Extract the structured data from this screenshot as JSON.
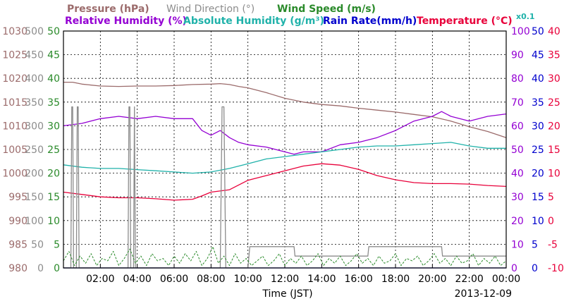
{
  "chart_data": {
    "type": "line",
    "legend": {
      "row1": [
        {
          "key": "pressure",
          "text": "Pressure (hPa)",
          "color": "#9b6b6b"
        },
        {
          "key": "wind_direction",
          "text": "Wind Direction (°)",
          "color": "#8c8c8c"
        },
        {
          "key": "wind_speed",
          "text": "Wind Speed (m/s)",
          "color": "#2a8a2a"
        }
      ],
      "row2": [
        {
          "key": "relative_humidity",
          "text": "Relative Humidity (%)",
          "color": "#9400d3"
        },
        {
          "key": "absolute_humidity",
          "text": "Absolute Humidity (g/m³)",
          "color": "#20b2aa"
        },
        {
          "key": "rain_rate",
          "text": "Rain Rate(mm/h)",
          "color": "#0000cd"
        },
        {
          "key": "temperature",
          "text": "Temperature (°C)",
          "color": "#e8003a"
        }
      ],
      "rain_multiplier": "x0.1"
    },
    "xlabel": "Time (JST)",
    "date": "2013-12-09",
    "x_ticks": [
      "02:00",
      "04:00",
      "06:00",
      "08:00",
      "10:00",
      "12:00",
      "14:00",
      "16:00",
      "18:00",
      "20:00",
      "22:00",
      "00:00"
    ],
    "xlim": [
      0,
      24
    ],
    "axes": {
      "pressure": {
        "ticks": [
          "980",
          "985",
          "990",
          "995",
          "1000",
          "1005",
          "1010",
          "1015",
          "1020",
          "1025",
          "1030"
        ],
        "ylim": [
          980,
          1030
        ],
        "color": "#9b6b6b"
      },
      "wind_direction": {
        "ticks": [
          "0",
          "50",
          "100",
          "150",
          "200",
          "250",
          "300",
          "350",
          "400",
          "450",
          "500"
        ],
        "ylim": [
          0,
          500
        ],
        "color": "#8c8c8c"
      },
      "wind_speed": {
        "ticks": [
          "0",
          "5",
          "10",
          "15",
          "20",
          "25",
          "30",
          "35",
          "40",
          "45",
          "50"
        ],
        "ylim": [
          0,
          50
        ],
        "color": "#2a8a2a"
      },
      "relative_humidity": {
        "ticks": [
          "0",
          "10",
          "20",
          "30",
          "40",
          "50",
          "60",
          "70",
          "80",
          "90",
          "100"
        ],
        "ylim": [
          0,
          100
        ],
        "color": "#9400d3"
      },
      "rain_rate": {
        "ticks": [
          "0",
          "5",
          "10",
          "15",
          "20",
          "25",
          "30",
          "35",
          "40",
          "45",
          "50"
        ],
        "ylim": [
          0,
          50
        ],
        "color": "#0000cd"
      },
      "temperature": {
        "ticks": [
          "-10",
          "-5",
          "0",
          "5",
          "10",
          "15",
          "20",
          "25",
          "30",
          "35",
          "40"
        ],
        "ylim": [
          -10,
          40
        ],
        "color": "#e8003a"
      }
    },
    "grid": true,
    "series": [
      {
        "name": "Pressure (hPa)",
        "color": "#9b6b6b",
        "axis": "pressure",
        "x": [
          0,
          0.5,
          1,
          2,
          3,
          4,
          5,
          6,
          7,
          8,
          8.5,
          9,
          9.5,
          10,
          11,
          12,
          13,
          14,
          15,
          16,
          17,
          18,
          19,
          20,
          21,
          22,
          23,
          24
        ],
        "y": [
          1019.2,
          1019.2,
          1018.8,
          1018.4,
          1018.3,
          1018.4,
          1018.4,
          1018.5,
          1018.7,
          1018.8,
          1018.9,
          1018.7,
          1018.3,
          1018.0,
          1017.0,
          1015.8,
          1015.0,
          1014.5,
          1014.2,
          1013.7,
          1013.3,
          1012.9,
          1012.4,
          1011.9,
          1011.0,
          1009.8,
          1008.8,
          1007.5
        ]
      },
      {
        "name": "Relative Humidity (%)",
        "color": "#9400d3",
        "axis": "relative_humidity",
        "x": [
          0,
          1,
          2,
          3,
          4,
          5,
          6,
          7,
          7.5,
          8,
          8.5,
          9,
          9.5,
          10,
          11,
          12,
          12.5,
          13,
          14,
          15,
          16,
          17,
          18,
          19,
          20,
          20.5,
          21,
          22,
          23,
          24
        ],
        "y": [
          60,
          61,
          63,
          64,
          63,
          64,
          63,
          63,
          58,
          56,
          58,
          55,
          53,
          52,
          51,
          49,
          48,
          49,
          49,
          52,
          53,
          55,
          58,
          62,
          64,
          66,
          64,
          62,
          64,
          65
        ]
      },
      {
        "name": "Absolute Humidity (g/m³)",
        "color": "#20b2aa",
        "axis": "relative_humidity",
        "x": [
          0,
          1,
          2,
          3,
          4,
          5,
          6,
          7,
          8,
          9,
          10,
          11,
          12,
          13,
          14,
          15,
          16,
          17,
          18,
          19,
          20,
          21,
          22,
          23,
          24
        ],
        "y": [
          43.5,
          42.5,
          42,
          42,
          41.5,
          41,
          40.5,
          40,
          40.5,
          42,
          44,
          46,
          47,
          48,
          49,
          50,
          51,
          51.5,
          51.5,
          52,
          52.5,
          53,
          51.5,
          50.5,
          50.5
        ]
      },
      {
        "name": "Rain Rate(mm/h)",
        "color": "#0000cd",
        "axis": "rain_rate",
        "x": [
          0,
          24
        ],
        "y": [
          0,
          0
        ]
      },
      {
        "name": "Temperature (°C)",
        "color": "#e8003a",
        "axis": "temperature",
        "x": [
          0,
          1,
          2,
          3,
          4,
          5,
          6,
          7,
          7.5,
          8,
          9,
          10,
          11,
          12,
          13,
          14,
          15,
          16,
          17,
          18,
          19,
          20,
          21,
          22,
          23,
          24
        ],
        "y": [
          6,
          5.5,
          5,
          4.8,
          4.8,
          4.6,
          4.3,
          4.5,
          5.2,
          6,
          6.5,
          8.5,
          9.5,
          10.5,
          11.5,
          12,
          11.7,
          10.8,
          9.5,
          8.6,
          8,
          7.8,
          7.8,
          7.7,
          7.4,
          7.2
        ]
      },
      {
        "name": "Wind Direction (°)",
        "color": "#8c8c8c",
        "axis": "wind_direction",
        "x": [
          0,
          0.4,
          0.45,
          0.5,
          0.55,
          0.7,
          0.75,
          0.8,
          0.85,
          1.0,
          3.5,
          3.55,
          3.6,
          3.65,
          3.8,
          3.85,
          3.9,
          4.0,
          8.5,
          8.6,
          8.7,
          8.8,
          9.0,
          10.0,
          10.1,
          12.5,
          12.55,
          16.5,
          16.55,
          20.5,
          20.55,
          22.5,
          24
        ],
        "y": [
          0,
          0,
          340,
          340,
          0,
          0,
          340,
          340,
          0,
          0,
          0,
          340,
          340,
          0,
          0,
          340,
          0,
          0,
          0,
          340,
          340,
          0,
          0,
          0,
          45,
          45,
          25,
          25,
          45,
          45,
          25,
          25,
          25
        ]
      },
      {
        "name": "Wind Speed (m/s)",
        "color": "#2a8a2a",
        "axis": "wind_speed",
        "style": "dashed",
        "x": [
          0,
          0.3,
          0.6,
          0.9,
          1.2,
          1.5,
          1.8,
          2.1,
          2.4,
          2.7,
          3.0,
          3.3,
          3.6,
          3.9,
          4.2,
          4.5,
          4.8,
          5.1,
          5.4,
          5.7,
          6.0,
          6.3,
          6.6,
          6.9,
          7.2,
          7.5,
          7.8,
          8.1,
          8.4,
          8.7,
          9.0,
          9.3,
          9.6,
          9.9,
          10.2,
          10.5,
          10.8,
          11.1,
          11.4,
          11.7,
          12.0,
          12.3,
          12.6,
          12.9,
          13.2,
          13.5,
          13.8,
          14.1,
          14.4,
          14.7,
          15.0,
          15.3,
          15.6,
          15.9,
          16.2,
          16.5,
          16.8,
          17.1,
          17.4,
          17.7,
          18.0,
          18.3,
          18.6,
          18.9,
          19.2,
          19.5,
          19.8,
          20.1,
          20.4,
          20.7,
          21.0,
          21.3,
          21.6,
          21.9,
          22.2,
          22.5,
          22.8,
          23.1,
          23.4,
          23.7,
          24.0
        ],
        "y": [
          1.5,
          3.5,
          0.5,
          2.5,
          1.0,
          3.0,
          0.5,
          2.0,
          1.5,
          3.5,
          0.5,
          2.0,
          4.0,
          1.0,
          2.5,
          0.5,
          3.0,
          1.5,
          2.0,
          0.5,
          2.5,
          1.0,
          3.0,
          1.5,
          3.5,
          0.5,
          2.0,
          4.5,
          1.0,
          2.5,
          0.5,
          3.0,
          1.0,
          2.0,
          0.5,
          1.5,
          2.5,
          0.5,
          1.5,
          3.0,
          0.5,
          2.0,
          1.0,
          2.5,
          0.5,
          1.5,
          3.0,
          0.5,
          2.0,
          1.0,
          2.5,
          0.5,
          1.5,
          3.0,
          1.0,
          2.0,
          0.5,
          2.5,
          1.0,
          1.5,
          3.0,
          0.5,
          2.0,
          1.5,
          2.5,
          0.5,
          1.5,
          3.0,
          1.0,
          2.0,
          0.5,
          2.5,
          1.0,
          1.5,
          3.0,
          0.5,
          2.0,
          1.0,
          2.5,
          0.5,
          1.5
        ]
      }
    ]
  }
}
